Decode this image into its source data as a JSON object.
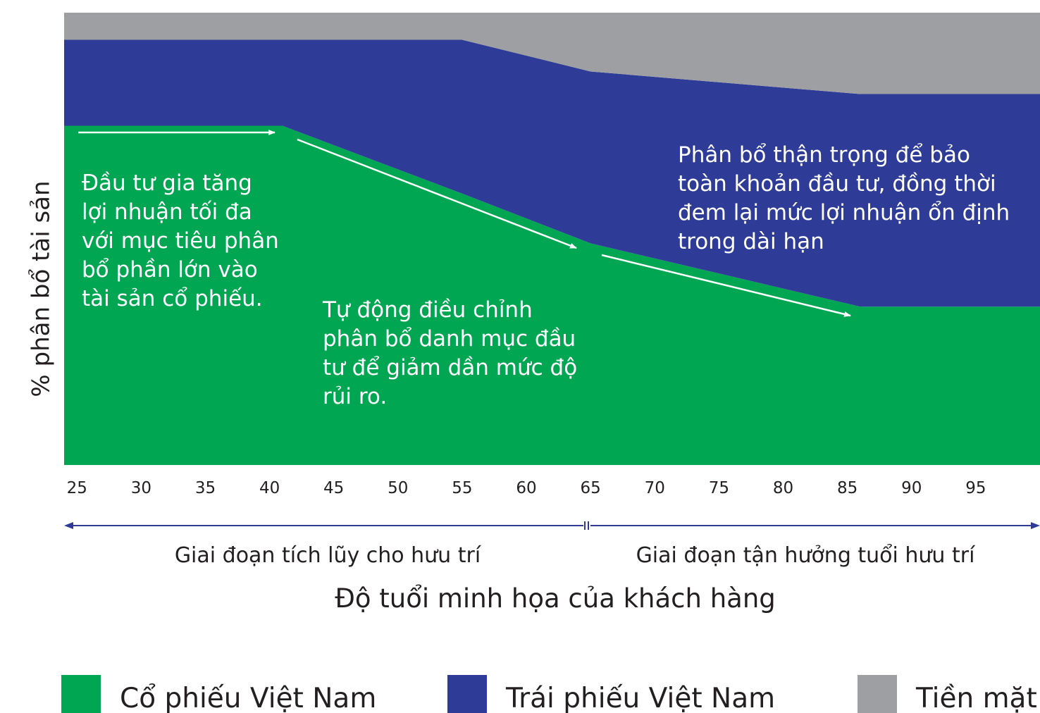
{
  "chart_data": {
    "type": "stacked-area",
    "xlabel": "Độ tuổi minh họa của khách hàng",
    "ylabel": "% phân bổ tài sản",
    "x": [
      24,
      41,
      55,
      65,
      86,
      100
    ],
    "xlim": [
      24,
      100
    ],
    "xticks": [
      25,
      30,
      35,
      40,
      45,
      50,
      55,
      60,
      65,
      70,
      75,
      80,
      85,
      90,
      95
    ],
    "ylim": [
      0,
      100
    ],
    "series": [
      {
        "name": "Cổ phiếu Việt Nam",
        "color": "#00a651",
        "values": [
          75,
          75,
          60,
          49,
          35,
          35
        ]
      },
      {
        "name": "Trái phiếu Việt Nam",
        "color": "#2e3b97",
        "values": [
          19,
          19,
          34,
          38,
          47,
          47
        ]
      },
      {
        "name": "Tiền mặt",
        "color": "#9d9fa2",
        "values": [
          6,
          6,
          6,
          13,
          18,
          18
        ]
      }
    ],
    "annotations": [
      [
        "Đầu tư gia tăng",
        "lợi nhuận tối đa",
        "với mục tiêu phân",
        "bổ phần lớn vào",
        "tài sản cổ phiếu."
      ],
      [
        "Tự động điều chỉnh",
        "phân bổ danh mục đầu",
        "tư để giảm dần mức độ",
        "rủi ro."
      ],
      [
        "Phân bổ thận trọng để bảo",
        "toàn khoản đầu tư, đồng thời",
        "đem lại mức lợi nhuận ổn định",
        "trong dài hạn"
      ]
    ],
    "phases": [
      "Giai đoạn tích lũy cho hưu trí",
      "Giai đoạn tận hưởng tuổi hưu trí"
    ]
  }
}
